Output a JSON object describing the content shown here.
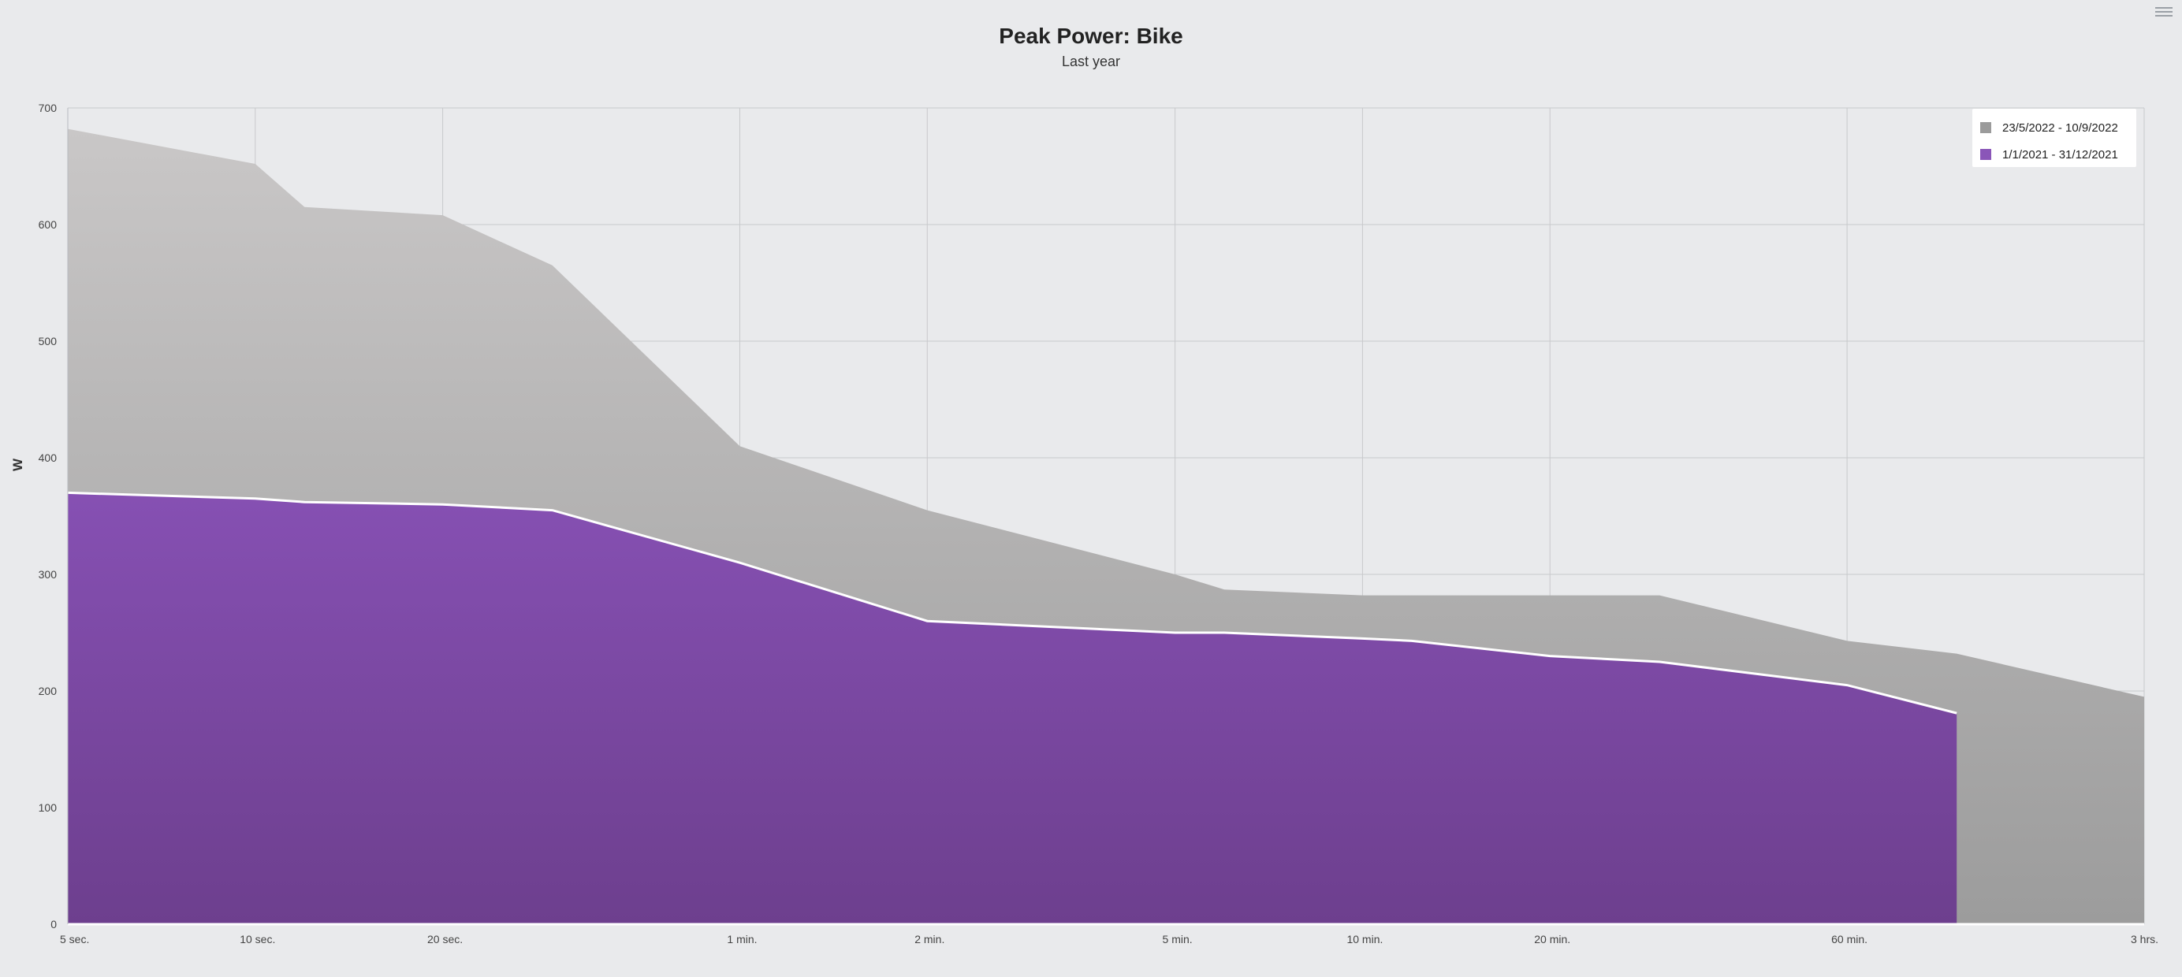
{
  "chart_data": {
    "type": "area",
    "title": "Peak Power: Bike",
    "subtitle": "Last year",
    "ylabel": "W",
    "xlabel": "",
    "ylim": [
      0,
      700
    ],
    "y_ticks": [
      0,
      100,
      200,
      300,
      400,
      500,
      600,
      700
    ],
    "x_scale": "log",
    "x_unit": "seconds",
    "x_ticks": [
      {
        "x": 5,
        "label": "5 sec."
      },
      {
        "x": 10,
        "label": "10 sec."
      },
      {
        "x": 20,
        "label": "20 sec."
      },
      {
        "x": 60,
        "label": "1 min."
      },
      {
        "x": 120,
        "label": "2 min."
      },
      {
        "x": 300,
        "label": "5 min."
      },
      {
        "x": 600,
        "label": "10 min."
      },
      {
        "x": 1200,
        "label": "20 min."
      },
      {
        "x": 3600,
        "label": "60 min."
      },
      {
        "x": 10800,
        "label": "3 hrs."
      }
    ],
    "grid": true,
    "legend_position": "top-right",
    "series": [
      {
        "name": "23/5/2022 - 10/9/2022",
        "color": "#a8a8a8",
        "points": [
          [
            5,
            682
          ],
          [
            10,
            652
          ],
          [
            12,
            615
          ],
          [
            20,
            608
          ],
          [
            30,
            565
          ],
          [
            60,
            410
          ],
          [
            120,
            355
          ],
          [
            300,
            300
          ],
          [
            360,
            287
          ],
          [
            600,
            282
          ],
          [
            1200,
            282
          ],
          [
            1800,
            282
          ],
          [
            3600,
            243
          ],
          [
            5400,
            232
          ],
          [
            10800,
            195
          ]
        ]
      },
      {
        "name": "1/1/2021 - 31/12/2021",
        "color": "#7e4ca6",
        "points": [
          [
            5,
            370
          ],
          [
            10,
            365
          ],
          [
            12,
            362
          ],
          [
            20,
            360
          ],
          [
            30,
            355
          ],
          [
            60,
            310
          ],
          [
            120,
            260
          ],
          [
            300,
            250
          ],
          [
            360,
            250
          ],
          [
            600,
            245
          ],
          [
            720,
            243
          ],
          [
            1200,
            230
          ],
          [
            1800,
            225
          ],
          [
            3600,
            205
          ],
          [
            5400,
            181
          ]
        ]
      }
    ]
  }
}
